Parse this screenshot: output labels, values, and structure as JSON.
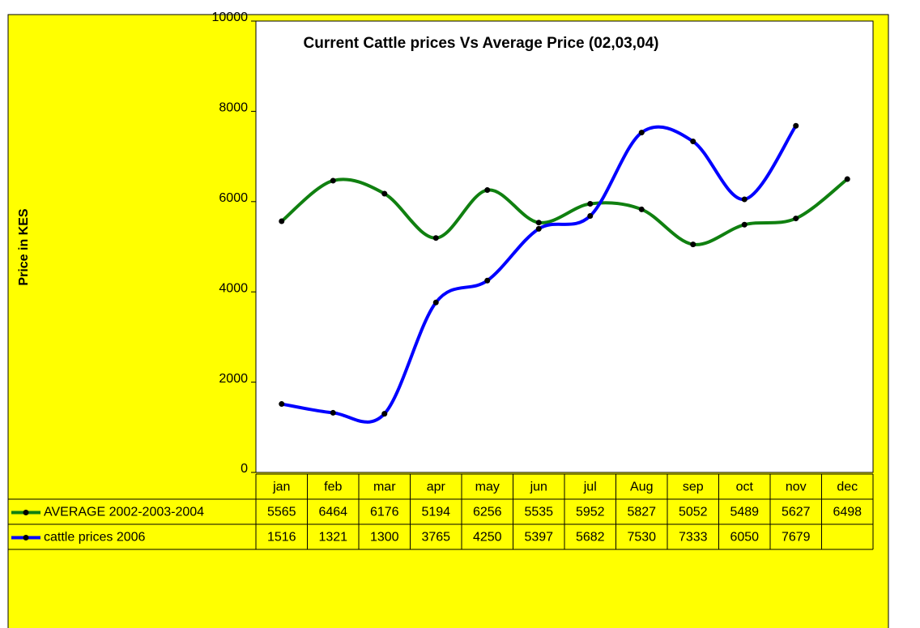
{
  "chart_data": {
    "type": "line",
    "title": "Current Cattle prices Vs Average Price (02,03,04)",
    "y_label": "Price in KES",
    "categories": [
      "jan",
      "feb",
      "mar",
      "apr",
      "may",
      "jun",
      "jul",
      "Aug",
      "sep",
      "oct",
      "nov",
      "dec"
    ],
    "series": [
      {
        "name": "AVERAGE 2002-2003-2004",
        "color": "#108010",
        "values": [
          5565,
          6464,
          6176,
          5194,
          6256,
          5535,
          5952,
          5827,
          5052,
          5489,
          5627,
          6498
        ]
      },
      {
        "name": "cattle prices 2006",
        "color": "#0000ff",
        "values": [
          1516,
          1321,
          1300,
          3765,
          4250,
          5397,
          5682,
          7530,
          7333,
          6050,
          7679,
          null
        ]
      }
    ],
    "ylim": [
      0,
      10000
    ],
    "yticks": [
      0,
      2000,
      4000,
      6000,
      8000,
      10000
    ],
    "smooth": true,
    "markers": true,
    "data_table": true
  }
}
